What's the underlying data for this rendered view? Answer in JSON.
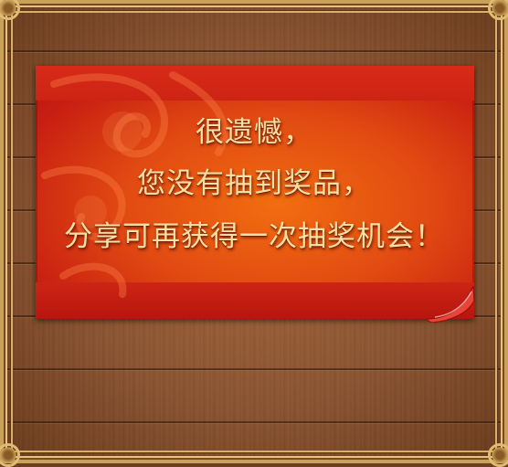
{
  "dialog": {
    "lines": [
      "很遗憾，",
      "您没有抽到奖品，",
      "分享可再获得一次抽奖机会！"
    ]
  },
  "colors": {
    "wood": "#8a5431",
    "frame_gold": "#c9a15a",
    "panel_red": "#c81f12",
    "panel_orange": "#f26d10",
    "text": "#fbe0a4"
  }
}
